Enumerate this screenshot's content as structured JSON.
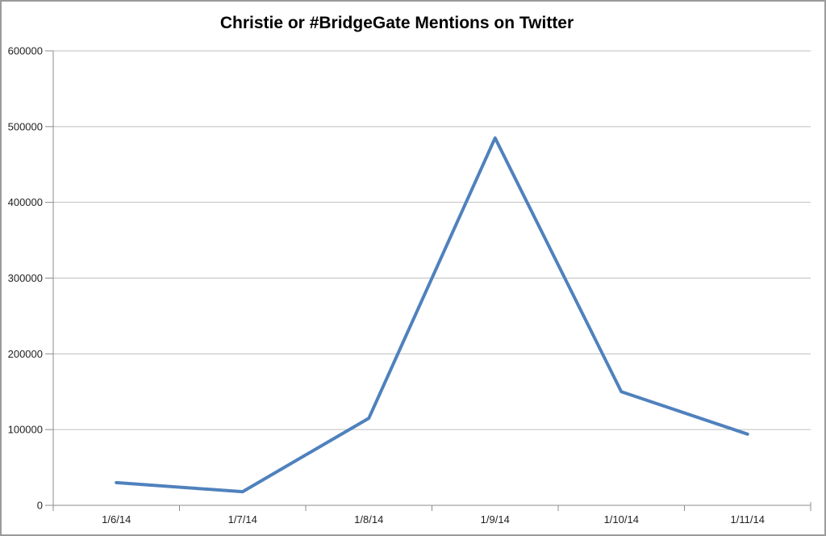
{
  "chart_data": {
    "type": "line",
    "title": "Christie or #BridgeGate Mentions on Twitter",
    "categories": [
      "1/6/14",
      "1/7/14",
      "1/8/14",
      "1/9/14",
      "1/10/14",
      "1/11/14"
    ],
    "values": [
      30000,
      18000,
      115000,
      485000,
      150000,
      94000
    ],
    "xlabel": "",
    "ylabel": "",
    "ylim": [
      0,
      600000
    ],
    "ytick_step": 100000,
    "ytick_labels": [
      "0",
      "100000",
      "200000",
      "300000",
      "400000",
      "500000",
      "600000"
    ],
    "grid": "horizontal",
    "legend": "none",
    "line_color": "#4F81BD",
    "gridline_color": "#BFBFBF",
    "axis_color": "#8C8C8C",
    "text_color": "#1f1f1f",
    "frame_border_color": "#9b9b9b",
    "background_color": "#FFFFFF"
  }
}
